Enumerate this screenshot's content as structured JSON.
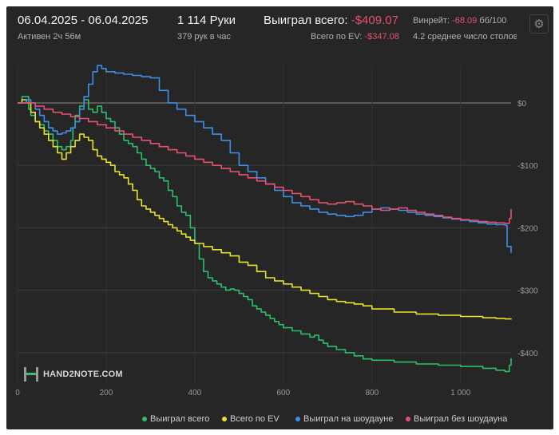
{
  "header": {
    "date_range": "06.04.2025 - 06.04.2025",
    "active": "Активен 2ч 56м",
    "hands": "1 114 Руки",
    "hands_per_hour": "379 рук в час",
    "won_label": "Выиграл всего:",
    "won_value": "-$409.07",
    "ev_label": "Всего по EV:",
    "ev_value": "-$347.08",
    "winrate_label": "Винрейт:",
    "winrate_value": "-68.09",
    "winrate_unit": "бб/100",
    "tables": "4.2 среднее число столов"
  },
  "logo_text": "HAND2NOTE.COM",
  "icons": {
    "settings": "gear-icon"
  },
  "chart_data": {
    "type": "line",
    "xlim": [
      0,
      1114
    ],
    "ylim": [
      -450,
      60
    ],
    "x_ticks": [
      0,
      200,
      400,
      600,
      800,
      1000
    ],
    "x_tick_labels": [
      "0",
      "200",
      "400",
      "600",
      "800",
      "1 000"
    ],
    "y_ticks": [
      0,
      -100,
      -200,
      -300,
      -400
    ],
    "y_tick_labels": [
      "$0",
      "-$100",
      "-$200",
      "-$300",
      "-$400"
    ],
    "grid": true,
    "legend_position": "bottom",
    "series": [
      {
        "name": "Выиграл всего",
        "color": "#2bbf6a",
        "points": [
          [
            0,
            0
          ],
          [
            10,
            10
          ],
          [
            20,
            10
          ],
          [
            25,
            -10
          ],
          [
            30,
            -20
          ],
          [
            40,
            -30
          ],
          [
            50,
            -35
          ],
          [
            60,
            -45
          ],
          [
            70,
            -50
          ],
          [
            80,
            -60
          ],
          [
            90,
            -70
          ],
          [
            100,
            -75
          ],
          [
            110,
            -70
          ],
          [
            120,
            -60
          ],
          [
            125,
            -40
          ],
          [
            130,
            -20
          ],
          [
            140,
            -5
          ],
          [
            150,
            5
          ],
          [
            160,
            -10
          ],
          [
            170,
            -15
          ],
          [
            180,
            -5
          ],
          [
            190,
            -15
          ],
          [
            200,
            -25
          ],
          [
            210,
            -30
          ],
          [
            220,
            -40
          ],
          [
            230,
            -50
          ],
          [
            240,
            -60
          ],
          [
            250,
            -65
          ],
          [
            260,
            -70
          ],
          [
            270,
            -80
          ],
          [
            280,
            -90
          ],
          [
            290,
            -100
          ],
          [
            300,
            -105
          ],
          [
            310,
            -110
          ],
          [
            320,
            -120
          ],
          [
            330,
            -125
          ],
          [
            340,
            -140
          ],
          [
            350,
            -150
          ],
          [
            360,
            -165
          ],
          [
            370,
            -175
          ],
          [
            380,
            -180
          ],
          [
            390,
            -200
          ],
          [
            400,
            -225
          ],
          [
            410,
            -250
          ],
          [
            420,
            -270
          ],
          [
            430,
            -280
          ],
          [
            440,
            -285
          ],
          [
            450,
            -290
          ],
          [
            460,
            -295
          ],
          [
            470,
            -300
          ],
          [
            480,
            -298
          ],
          [
            490,
            -300
          ],
          [
            500,
            -305
          ],
          [
            510,
            -310
          ],
          [
            520,
            -315
          ],
          [
            530,
            -325
          ],
          [
            540,
            -330
          ],
          [
            550,
            -335
          ],
          [
            560,
            -340
          ],
          [
            570,
            -345
          ],
          [
            580,
            -350
          ],
          [
            590,
            -355
          ],
          [
            600,
            -360
          ],
          [
            620,
            -365
          ],
          [
            640,
            -370
          ],
          [
            660,
            -375
          ],
          [
            670,
            -372
          ],
          [
            680,
            -380
          ],
          [
            690,
            -385
          ],
          [
            700,
            -390
          ],
          [
            720,
            -395
          ],
          [
            740,
            -400
          ],
          [
            760,
            -405
          ],
          [
            780,
            -410
          ],
          [
            800,
            -412
          ],
          [
            850,
            -415
          ],
          [
            900,
            -418
          ],
          [
            950,
            -420
          ],
          [
            1000,
            -422
          ],
          [
            1050,
            -425
          ],
          [
            1080,
            -428
          ],
          [
            1100,
            -430
          ],
          [
            1110,
            -420
          ],
          [
            1114,
            -409
          ]
        ]
      },
      {
        "name": "Всего по EV",
        "color": "#e6e22e",
        "points": [
          [
            0,
            0
          ],
          [
            10,
            5
          ],
          [
            20,
            0
          ],
          [
            30,
            -15
          ],
          [
            40,
            -30
          ],
          [
            50,
            -40
          ],
          [
            60,
            -50
          ],
          [
            70,
            -60
          ],
          [
            80,
            -70
          ],
          [
            90,
            -80
          ],
          [
            100,
            -90
          ],
          [
            110,
            -80
          ],
          [
            120,
            -70
          ],
          [
            130,
            -60
          ],
          [
            140,
            -50
          ],
          [
            150,
            -55
          ],
          [
            160,
            -60
          ],
          [
            170,
            -75
          ],
          [
            180,
            -85
          ],
          [
            190,
            -90
          ],
          [
            200,
            -95
          ],
          [
            210,
            -100
          ],
          [
            220,
            -110
          ],
          [
            230,
            -115
          ],
          [
            240,
            -120
          ],
          [
            250,
            -130
          ],
          [
            260,
            -140
          ],
          [
            270,
            -155
          ],
          [
            280,
            -165
          ],
          [
            290,
            -170
          ],
          [
            300,
            -175
          ],
          [
            310,
            -180
          ],
          [
            320,
            -185
          ],
          [
            330,
            -190
          ],
          [
            340,
            -195
          ],
          [
            350,
            -200
          ],
          [
            360,
            -205
          ],
          [
            370,
            -210
          ],
          [
            380,
            -215
          ],
          [
            390,
            -220
          ],
          [
            400,
            -225
          ],
          [
            420,
            -230
          ],
          [
            440,
            -235
          ],
          [
            460,
            -240
          ],
          [
            480,
            -245
          ],
          [
            500,
            -255
          ],
          [
            520,
            -260
          ],
          [
            540,
            -270
          ],
          [
            560,
            -280
          ],
          [
            580,
            -285
          ],
          [
            600,
            -290
          ],
          [
            620,
            -295
          ],
          [
            640,
            -300
          ],
          [
            660,
            -305
          ],
          [
            680,
            -310
          ],
          [
            700,
            -315
          ],
          [
            720,
            -318
          ],
          [
            740,
            -320
          ],
          [
            760,
            -322
          ],
          [
            780,
            -325
          ],
          [
            800,
            -330
          ],
          [
            850,
            -335
          ],
          [
            900,
            -338
          ],
          [
            950,
            -340
          ],
          [
            1000,
            -342
          ],
          [
            1050,
            -344
          ],
          [
            1080,
            -345
          ],
          [
            1100,
            -346
          ],
          [
            1114,
            -347
          ]
        ]
      },
      {
        "name": "Выиграл на шоудауне",
        "color": "#3f8fe6",
        "points": [
          [
            0,
            0
          ],
          [
            20,
            5
          ],
          [
            30,
            0
          ],
          [
            40,
            -10
          ],
          [
            50,
            -20
          ],
          [
            60,
            -30
          ],
          [
            70,
            -40
          ],
          [
            80,
            -45
          ],
          [
            90,
            -50
          ],
          [
            100,
            -48
          ],
          [
            110,
            -45
          ],
          [
            120,
            -40
          ],
          [
            130,
            -30
          ],
          [
            140,
            -10
          ],
          [
            150,
            10
          ],
          [
            160,
            30
          ],
          [
            170,
            50
          ],
          [
            180,
            60
          ],
          [
            190,
            55
          ],
          [
            200,
            50
          ],
          [
            220,
            48
          ],
          [
            240,
            46
          ],
          [
            260,
            44
          ],
          [
            280,
            42
          ],
          [
            300,
            40
          ],
          [
            320,
            20
          ],
          [
            340,
            0
          ],
          [
            360,
            -10
          ],
          [
            380,
            -20
          ],
          [
            400,
            -30
          ],
          [
            420,
            -40
          ],
          [
            440,
            -50
          ],
          [
            460,
            -60
          ],
          [
            480,
            -80
          ],
          [
            500,
            -100
          ],
          [
            520,
            -110
          ],
          [
            540,
            -120
          ],
          [
            560,
            -130
          ],
          [
            580,
            -140
          ],
          [
            600,
            -150
          ],
          [
            620,
            -160
          ],
          [
            640,
            -165
          ],
          [
            660,
            -170
          ],
          [
            680,
            -175
          ],
          [
            700,
            -178
          ],
          [
            720,
            -180
          ],
          [
            740,
            -182
          ],
          [
            760,
            -180
          ],
          [
            780,
            -175
          ],
          [
            800,
            -170
          ],
          [
            820,
            -168
          ],
          [
            840,
            -170
          ],
          [
            860,
            -172
          ],
          [
            880,
            -175
          ],
          [
            900,
            -178
          ],
          [
            920,
            -180
          ],
          [
            940,
            -182
          ],
          [
            960,
            -184
          ],
          [
            980,
            -186
          ],
          [
            1000,
            -188
          ],
          [
            1020,
            -190
          ],
          [
            1040,
            -192
          ],
          [
            1060,
            -194
          ],
          [
            1080,
            -195
          ],
          [
            1100,
            -196
          ],
          [
            1105,
            -230
          ],
          [
            1114,
            -240
          ]
        ]
      },
      {
        "name": "Выиграл без шоудауна",
        "color": "#e8506e",
        "points": [
          [
            0,
            0
          ],
          [
            20,
            0
          ],
          [
            40,
            -5
          ],
          [
            60,
            -10
          ],
          [
            80,
            -15
          ],
          [
            100,
            -18
          ],
          [
            120,
            -22
          ],
          [
            140,
            -25
          ],
          [
            160,
            -30
          ],
          [
            180,
            -35
          ],
          [
            200,
            -40
          ],
          [
            220,
            -45
          ],
          [
            240,
            -50
          ],
          [
            260,
            -55
          ],
          [
            280,
            -60
          ],
          [
            300,
            -65
          ],
          [
            320,
            -70
          ],
          [
            340,
            -75
          ],
          [
            360,
            -80
          ],
          [
            380,
            -85
          ],
          [
            400,
            -90
          ],
          [
            420,
            -95
          ],
          [
            440,
            -100
          ],
          [
            460,
            -105
          ],
          [
            480,
            -110
          ],
          [
            500,
            -115
          ],
          [
            520,
            -120
          ],
          [
            540,
            -125
          ],
          [
            560,
            -130
          ],
          [
            580,
            -135
          ],
          [
            600,
            -140
          ],
          [
            620,
            -145
          ],
          [
            640,
            -150
          ],
          [
            660,
            -155
          ],
          [
            680,
            -160
          ],
          [
            700,
            -162
          ],
          [
            720,
            -160
          ],
          [
            740,
            -158
          ],
          [
            760,
            -162
          ],
          [
            780,
            -165
          ],
          [
            800,
            -170
          ],
          [
            820,
            -172
          ],
          [
            840,
            -170
          ],
          [
            860,
            -168
          ],
          [
            880,
            -172
          ],
          [
            900,
            -175
          ],
          [
            920,
            -178
          ],
          [
            940,
            -180
          ],
          [
            960,
            -183
          ],
          [
            980,
            -185
          ],
          [
            1000,
            -187
          ],
          [
            1020,
            -188
          ],
          [
            1040,
            -190
          ],
          [
            1060,
            -191
          ],
          [
            1080,
            -192
          ],
          [
            1100,
            -193
          ],
          [
            1110,
            -185
          ],
          [
            1114,
            -170
          ]
        ]
      }
    ]
  }
}
